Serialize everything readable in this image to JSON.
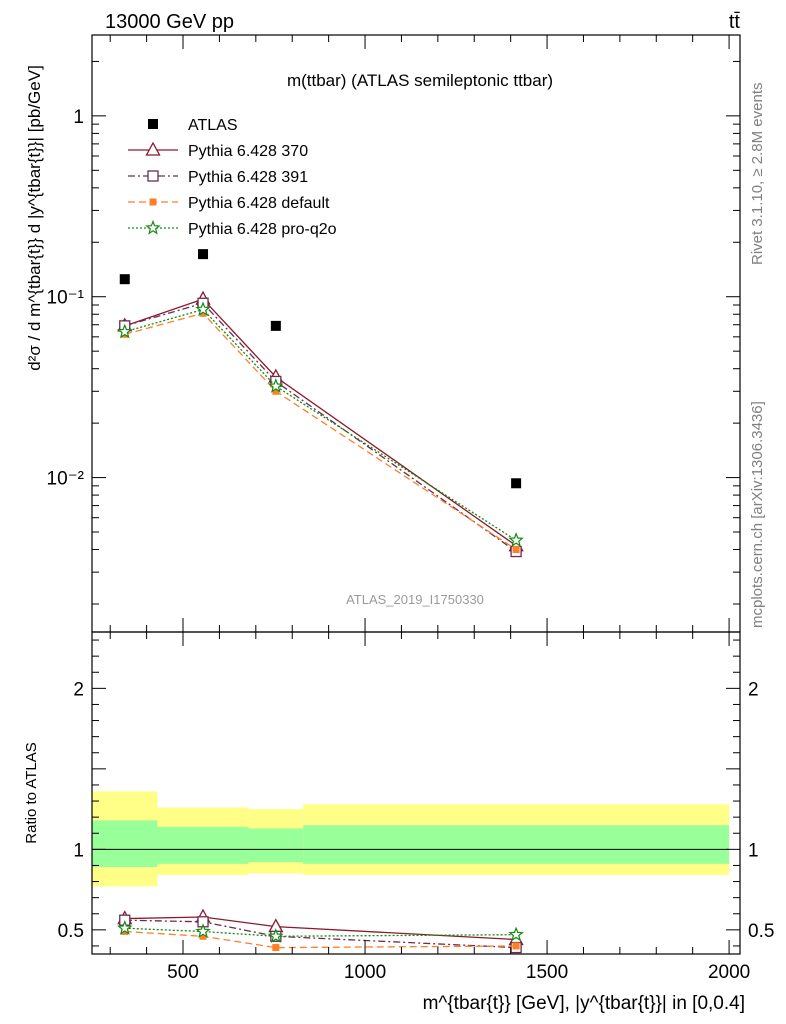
{
  "header": {
    "energy_label": "13000 GeV pp",
    "process_label": "tt̄"
  },
  "side_text": {
    "rivet": "Rivet 3.1.10, ≥ 2.8M events",
    "source": "mcplots.cern.ch [arXiv:1306.3436]"
  },
  "colors": {
    "data": "#000000",
    "p370": "#8b1a2b",
    "p391": "#6b2c4f",
    "pdefault": "#ff7f27",
    "pq2o": "#118b11",
    "band_inner": "#99ff99",
    "band_outer": "#ffff88"
  },
  "chart_data": [
    {
      "type": "scatter",
      "title": "m(ttbar) (ATLAS semileptonic ttbar)",
      "analysis_label": "ATLAS_2019_I1750330",
      "ylabel": "d²σ / d m^{tbar{t}} d |y^{tbar{t}}| [pb/GeV]",
      "y_scale": "log",
      "ylim": [
        0.0014,
        2.8
      ],
      "xlim": [
        250,
        2030
      ],
      "y_tick_labels": [
        "10⁻²",
        "10⁻¹",
        "1"
      ],
      "legend_position": "top-left",
      "series": [
        {
          "name": "ATLAS",
          "marker": "filled-square",
          "x": [
            340,
            555,
            755,
            1415
          ],
          "y": [
            0.125,
            0.172,
            0.069,
            0.0093
          ]
        },
        {
          "name": "Pythia 6.428 370",
          "marker": "open-triangle",
          "line": "solid",
          "x": [
            340,
            555,
            755,
            1415
          ],
          "y": [
            0.069,
            0.097,
            0.036,
            0.0042
          ]
        },
        {
          "name": "Pythia 6.428 391",
          "marker": "open-square",
          "line": "dash-dot",
          "x": [
            340,
            555,
            755,
            1415
          ],
          "y": [
            0.069,
            0.092,
            0.034,
            0.0039
          ]
        },
        {
          "name": "Pythia 6.428 default",
          "marker": "filled-square",
          "line": "dashed",
          "x": [
            340,
            555,
            755,
            1415
          ],
          "y": [
            0.062,
            0.081,
            0.03,
            0.004
          ]
        },
        {
          "name": "Pythia 6.428 pro-q2o",
          "marker": "star",
          "line": "dotted",
          "x": [
            340,
            555,
            755,
            1415
          ],
          "y": [
            0.064,
            0.085,
            0.032,
            0.0045
          ]
        }
      ]
    },
    {
      "type": "line",
      "ylabel": "Ratio to ATLAS",
      "xlabel": "m^{tbar{t}} [GeV], |y^{tbar{t}}| in [0,0.4]",
      "xlim": [
        250,
        2030
      ],
      "ylim": [
        0.35,
        2.35
      ],
      "x_tick_labels": [
        "500",
        "1000",
        "1500",
        "2000"
      ],
      "y_tick_labels": [
        "0.5",
        "1",
        "2"
      ],
      "bands": [
        {
          "x_low": 250,
          "x_high": 430,
          "inner": [
            0.89,
            1.18
          ],
          "outer": [
            0.77,
            1.36
          ]
        },
        {
          "x_low": 430,
          "x_high": 680,
          "inner": [
            0.91,
            1.14
          ],
          "outer": [
            0.84,
            1.26
          ]
        },
        {
          "x_low": 680,
          "x_high": 830,
          "inner": [
            0.92,
            1.13
          ],
          "outer": [
            0.85,
            1.25
          ]
        },
        {
          "x_low": 830,
          "x_high": 2000,
          "inner": [
            0.91,
            1.15
          ],
          "outer": [
            0.84,
            1.28
          ]
        }
      ],
      "series": [
        {
          "name": "Pythia 6.428 370",
          "x": [
            340,
            555,
            755,
            1415
          ],
          "y": [
            0.57,
            0.58,
            0.52,
            0.44
          ]
        },
        {
          "name": "Pythia 6.428 391",
          "x": [
            340,
            555,
            755,
            1415
          ],
          "y": [
            0.56,
            0.55,
            0.46,
            0.39
          ]
        },
        {
          "name": "Pythia 6.428 default",
          "x": [
            340,
            555,
            755,
            1415
          ],
          "y": [
            0.49,
            0.46,
            0.39,
            0.4
          ]
        },
        {
          "name": "Pythia 6.428 pro-q2o",
          "x": [
            340,
            555,
            755,
            1415
          ],
          "y": [
            0.51,
            0.49,
            0.46,
            0.47
          ]
        }
      ]
    }
  ]
}
